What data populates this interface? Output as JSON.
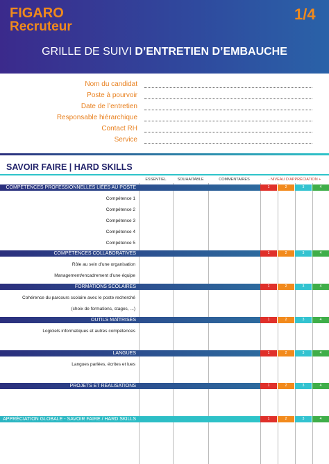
{
  "header": {
    "brand_top": "FIGARO",
    "brand_bottom": "Recruteur",
    "page": "1/4",
    "title_light": "GRILLE DE SUIVI ",
    "title_bold": "D’ENTRETIEN D’EMBAUCHE"
  },
  "fields": [
    "Nom du candidat",
    "Poste à pourvoir",
    "Date de l’entretien",
    "Responsable hiérarchique",
    "Contact RH",
    "Service"
  ],
  "section_title": "SAVOIR FAIRE | HARD SKILLS",
  "columns": [
    "ESSENTIEL",
    "SOUHAITABLE",
    "COMMENTAIRES",
    "- NIVEAU D’APPRÉCIATION +"
  ],
  "levels": [
    "1",
    "2",
    "3",
    "4"
  ],
  "sections": [
    {
      "title": "COMPÉTENCES PROFESSIONNELLES LIÉES AU POSTE",
      "rows": [
        "Compétence 1",
        "Compétence 2",
        "Compétence 3",
        "Compétence 4",
        "Compétence 5"
      ]
    },
    {
      "title": "COMPÉTENCES COLLABORATIVES",
      "rows": [
        "Rôle au sein d’une organisation",
        "Management/encadrement d’une équipe"
      ]
    },
    {
      "title": "FORMATIONS SCOLAIRES",
      "rows": [
        "Cohérence du parcours scolaire avec le poste recherché",
        "(choix de formations, stages, ...)"
      ]
    },
    {
      "title": "OUTILS MAÎTRISÉS",
      "rows": [
        "Logiciels informatiques et autres compétences"
      ]
    },
    {
      "title": "LANGUES",
      "rows": [
        "Langues parlées, écrites et lues"
      ]
    },
    {
      "title": "PROJETS ET RÉALISATIONS",
      "rows": []
    },
    {
      "title": "APPRÉCIATION GLOBALE - SAVOIR FAIRE / HARD SKILLS",
      "rows": []
    }
  ]
}
